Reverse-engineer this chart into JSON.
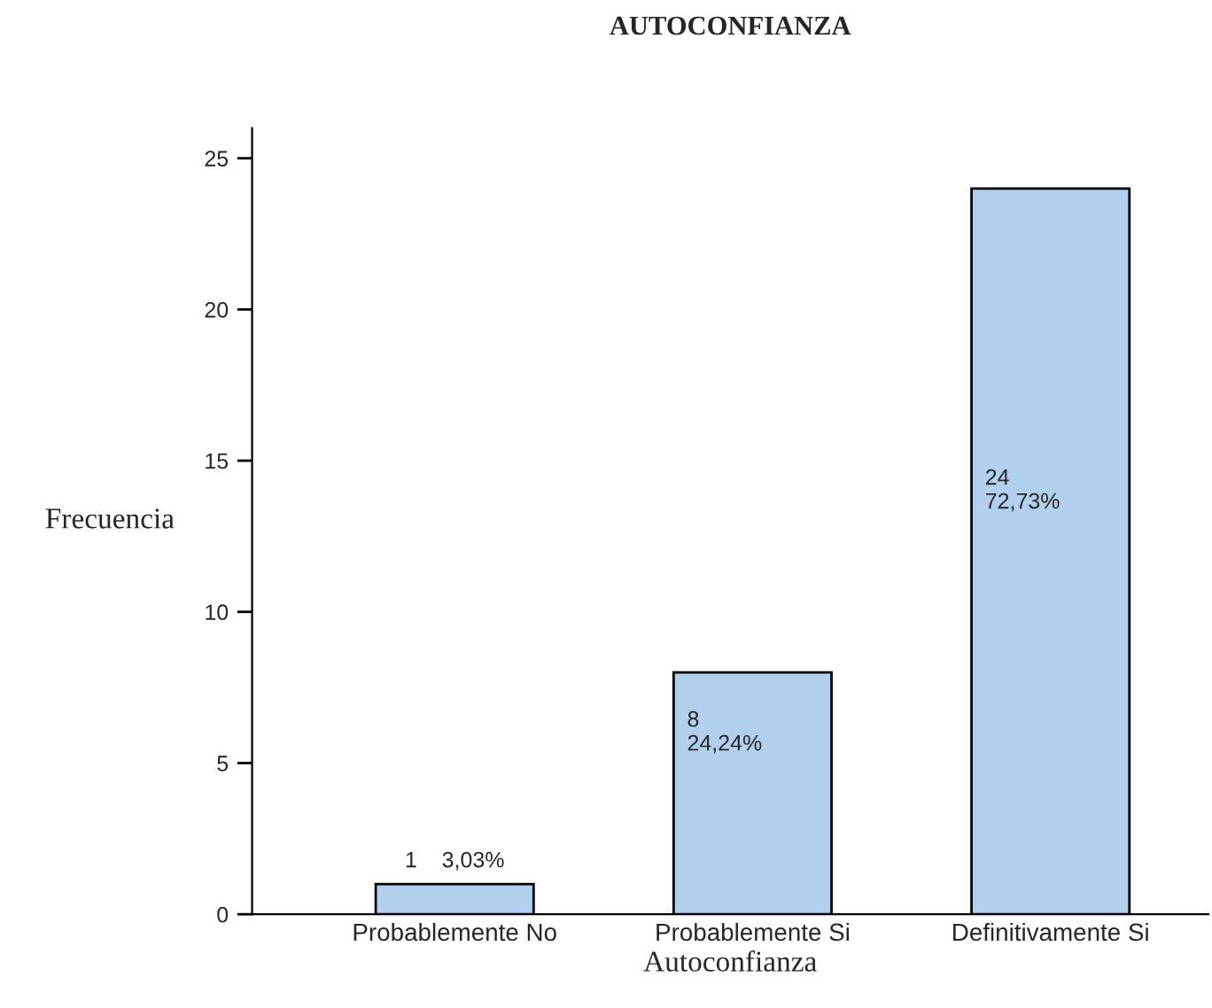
{
  "chart_data": {
    "type": "bar",
    "title": "AUTOCONFIANZA",
    "xlabel": "Autoconfianza",
    "ylabel": "Frecuencia",
    "categories": [
      "Probablemente No",
      "Probablemente Si",
      "Definitivamente Si"
    ],
    "values": [
      1,
      8,
      24
    ],
    "value_labels": [
      "1    3,03%",
      "8\n24,24%",
      "24\n72,73%"
    ],
    "color": "#b0d0ee",
    "ylim": [
      0,
      26
    ],
    "yticks": [
      0,
      5,
      10,
      15,
      20,
      25
    ],
    "grid": false,
    "legend": false
  }
}
